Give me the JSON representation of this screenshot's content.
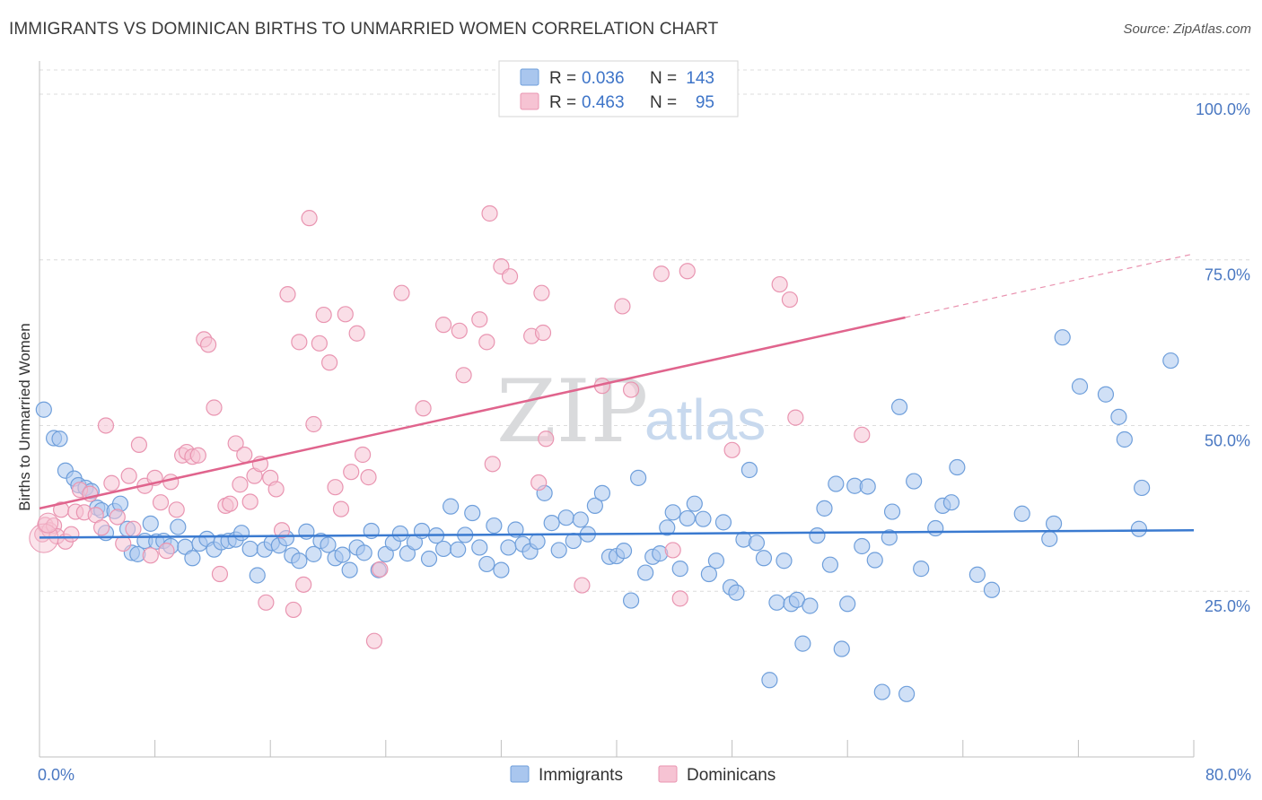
{
  "title": "IMMIGRANTS VS DOMINICAN BIRTHS TO UNMARRIED WOMEN CORRELATION CHART",
  "source": "Source: ZipAtlas.com",
  "watermark": {
    "zip": "ZIP",
    "atlas": "atlas"
  },
  "colors": {
    "immigrants_fill": "#a9c6ee",
    "immigrants_stroke": "#6f9fdb",
    "immigrants_line": "#3a7ad0",
    "dominicans_fill": "#f6c3d3",
    "dominicans_stroke": "#e995b1",
    "dominicans_line": "#e0648d",
    "tick_text": "#4a78c2",
    "grid": "#dcdcdc"
  },
  "legend_top": {
    "rows": [
      {
        "r_label": "R =",
        "r_value": "0.036",
        "n_label": "N =",
        "n_value": "143",
        "series": "immigrants"
      },
      {
        "r_label": "R =",
        "r_value": "0.463",
        "n_label": "N =",
        "n_value": "95",
        "series": "dominicans"
      }
    ]
  },
  "legend_bottom": [
    {
      "label": "Immigrants",
      "series": "immigrants"
    },
    {
      "label": "Dominicans",
      "series": "dominicans"
    }
  ],
  "chart_data": {
    "type": "scatter",
    "title": "IMMIGRANTS VS DOMINICAN BIRTHS TO UNMARRIED WOMEN CORRELATION CHART",
    "xlabel": "",
    "ylabel": "Births to Unmarried Women",
    "xlim": [
      0,
      80
    ],
    "ylim": [
      0,
      105
    ],
    "x_tick_labels": [
      {
        "value": 0,
        "label": "0.0%"
      },
      {
        "value": 80,
        "label": "80.0%"
      }
    ],
    "y_tick_labels": [
      {
        "value": 25,
        "label": "25.0%"
      },
      {
        "value": 50,
        "label": "50.0%"
      },
      {
        "value": 75,
        "label": "75.0%"
      },
      {
        "value": 100,
        "label": "100.0%"
      }
    ],
    "x_minor_ticks": [
      0,
      8,
      16,
      24,
      32,
      40,
      48,
      56,
      64,
      72,
      80
    ],
    "grid": "horizontal dashed",
    "legend": "top-center",
    "series": [
      {
        "name": "Immigrants",
        "r": 0.036,
        "n": 143,
        "trend": {
          "x0": 0,
          "y0": 33.1,
          "x1": 80,
          "y1": 34.2
        },
        "points": [
          [
            0.3,
            52.4
          ],
          [
            1.0,
            48.1
          ],
          [
            1.4,
            48.0
          ],
          [
            1.8,
            43.2
          ],
          [
            2.4,
            42.0
          ],
          [
            2.7,
            41.0
          ],
          [
            3.2,
            40.6
          ],
          [
            3.6,
            40.1
          ],
          [
            4.0,
            37.6
          ],
          [
            4.3,
            37.2
          ],
          [
            4.6,
            33.8
          ],
          [
            5.2,
            37.1
          ],
          [
            5.6,
            38.2
          ],
          [
            6.1,
            34.4
          ],
          [
            6.4,
            30.8
          ],
          [
            6.8,
            30.6
          ],
          [
            7.3,
            32.6
          ],
          [
            7.7,
            35.2
          ],
          [
            8.1,
            32.5
          ],
          [
            8.6,
            32.6
          ],
          [
            9.1,
            31.8
          ],
          [
            9.6,
            34.7
          ],
          [
            10.1,
            31.7
          ],
          [
            10.6,
            30.0
          ],
          [
            11.1,
            32.2
          ],
          [
            11.6,
            32.9
          ],
          [
            12.1,
            31.3
          ],
          [
            12.6,
            32.4
          ],
          [
            13.1,
            32.6
          ],
          [
            13.6,
            32.8
          ],
          [
            14.0,
            33.8
          ],
          [
            14.6,
            31.4
          ],
          [
            15.1,
            27.4
          ],
          [
            15.6,
            31.3
          ],
          [
            16.1,
            32.3
          ],
          [
            16.6,
            31.9
          ],
          [
            17.1,
            33.0
          ],
          [
            17.5,
            30.4
          ],
          [
            18.0,
            29.6
          ],
          [
            18.5,
            34.0
          ],
          [
            19.0,
            30.6
          ],
          [
            19.5,
            32.6
          ],
          [
            20.0,
            32.0
          ],
          [
            20.5,
            30.0
          ],
          [
            21.0,
            30.5
          ],
          [
            21.5,
            28.2
          ],
          [
            22.0,
            31.6
          ],
          [
            22.5,
            30.8
          ],
          [
            23.0,
            34.1
          ],
          [
            23.5,
            28.2
          ],
          [
            24.0,
            30.6
          ],
          [
            24.5,
            32.3
          ],
          [
            25.0,
            33.7
          ],
          [
            25.5,
            30.7
          ],
          [
            26.0,
            32.4
          ],
          [
            26.5,
            34.1
          ],
          [
            27.0,
            29.9
          ],
          [
            27.5,
            33.4
          ],
          [
            28.0,
            31.4
          ],
          [
            28.5,
            37.8
          ],
          [
            29.0,
            31.3
          ],
          [
            29.5,
            33.5
          ],
          [
            30.0,
            36.8
          ],
          [
            30.5,
            31.6
          ],
          [
            31.0,
            29.1
          ],
          [
            31.5,
            34.9
          ],
          [
            32.0,
            28.2
          ],
          [
            32.5,
            31.6
          ],
          [
            33.0,
            34.3
          ],
          [
            33.5,
            32.1
          ],
          [
            34.0,
            31.0
          ],
          [
            34.5,
            32.5
          ],
          [
            35.0,
            39.8
          ],
          [
            35.5,
            35.3
          ],
          [
            36.0,
            31.2
          ],
          [
            36.5,
            36.1
          ],
          [
            37.0,
            32.6
          ],
          [
            37.5,
            35.8
          ],
          [
            38.0,
            33.6
          ],
          [
            38.5,
            37.9
          ],
          [
            39.0,
            39.8
          ],
          [
            39.5,
            30.2
          ],
          [
            40.0,
            30.3
          ],
          [
            40.5,
            31.1
          ],
          [
            41.0,
            23.6
          ],
          [
            41.5,
            42.1
          ],
          [
            42.0,
            27.8
          ],
          [
            42.5,
            30.2
          ],
          [
            43.0,
            30.7
          ],
          [
            43.5,
            34.6
          ],
          [
            43.9,
            36.9
          ],
          [
            44.4,
            28.4
          ],
          [
            44.9,
            36.0
          ],
          [
            45.4,
            38.2
          ],
          [
            46.0,
            35.9
          ],
          [
            46.4,
            27.6
          ],
          [
            46.9,
            29.6
          ],
          [
            47.4,
            35.4
          ],
          [
            47.9,
            25.6
          ],
          [
            48.3,
            24.8
          ],
          [
            48.8,
            32.8
          ],
          [
            49.2,
            43.3
          ],
          [
            49.7,
            32.3
          ],
          [
            50.2,
            30.0
          ],
          [
            50.6,
            11.6
          ],
          [
            51.1,
            23.3
          ],
          [
            51.6,
            29.6
          ],
          [
            52.1,
            23.1
          ],
          [
            52.5,
            23.7
          ],
          [
            52.9,
            17.1
          ],
          [
            53.4,
            22.8
          ],
          [
            53.9,
            33.4
          ],
          [
            54.4,
            37.5
          ],
          [
            54.8,
            29.0
          ],
          [
            55.2,
            41.2
          ],
          [
            55.6,
            16.3
          ],
          [
            56.0,
            23.1
          ],
          [
            56.5,
            40.9
          ],
          [
            57.0,
            31.8
          ],
          [
            57.4,
            40.8
          ],
          [
            57.9,
            29.7
          ],
          [
            58.4,
            9.8
          ],
          [
            58.9,
            33.1
          ],
          [
            59.1,
            37.0
          ],
          [
            59.6,
            52.8
          ],
          [
            60.1,
            9.5
          ],
          [
            60.6,
            41.6
          ],
          [
            61.1,
            28.4
          ],
          [
            62.1,
            34.5
          ],
          [
            62.6,
            37.9
          ],
          [
            63.2,
            38.4
          ],
          [
            63.6,
            43.7
          ],
          [
            65.0,
            27.5
          ],
          [
            66.0,
            25.2
          ],
          [
            68.1,
            36.7
          ],
          [
            70.0,
            32.9
          ],
          [
            70.3,
            35.2
          ],
          [
            70.9,
            63.3
          ],
          [
            72.1,
            55.9
          ],
          [
            73.9,
            54.7
          ],
          [
            74.8,
            51.3
          ],
          [
            75.2,
            47.9
          ],
          [
            76.2,
            34.4
          ],
          [
            76.4,
            40.6
          ],
          [
            78.4,
            59.8
          ]
        ]
      },
      {
        "name": "Dominicans",
        "r": 0.463,
        "n": 95,
        "trend": {
          "x0": 0,
          "y0": 37.5,
          "x1": 60,
          "y1": 66.3
        },
        "trend_extension": {
          "x0": 60,
          "y0": 66.3,
          "x1": 80,
          "y1": 75.9
        },
        "points": [
          [
            0.2,
            33.6
          ],
          [
            0.4,
            35.0
          ],
          [
            0.7,
            34.2
          ],
          [
            1.0,
            34.9
          ],
          [
            1.2,
            33.3
          ],
          [
            1.5,
            37.3
          ],
          [
            1.8,
            32.5
          ],
          [
            2.2,
            33.6
          ],
          [
            2.5,
            37.0
          ],
          [
            2.8,
            40.3
          ],
          [
            3.1,
            36.9
          ],
          [
            3.5,
            39.7
          ],
          [
            3.9,
            36.5
          ],
          [
            4.3,
            34.6
          ],
          [
            4.6,
            50.0
          ],
          [
            5.0,
            41.3
          ],
          [
            5.4,
            36.2
          ],
          [
            5.8,
            32.2
          ],
          [
            6.2,
            42.4
          ],
          [
            6.5,
            34.4
          ],
          [
            6.9,
            47.1
          ],
          [
            7.3,
            40.9
          ],
          [
            7.7,
            30.4
          ],
          [
            8.0,
            42.1
          ],
          [
            8.4,
            38.4
          ],
          [
            8.8,
            31.1
          ],
          [
            9.1,
            41.5
          ],
          [
            9.5,
            37.3
          ],
          [
            9.9,
            45.5
          ],
          [
            10.2,
            46.0
          ],
          [
            10.6,
            45.3
          ],
          [
            11.0,
            45.5
          ],
          [
            11.4,
            63.0
          ],
          [
            11.7,
            62.2
          ],
          [
            12.1,
            52.7
          ],
          [
            12.5,
            27.6
          ],
          [
            12.9,
            37.9
          ],
          [
            13.2,
            38.2
          ],
          [
            13.6,
            47.3
          ],
          [
            13.9,
            41.1
          ],
          [
            14.2,
            45.6
          ],
          [
            14.6,
            38.5
          ],
          [
            14.9,
            42.4
          ],
          [
            15.3,
            44.2
          ],
          [
            15.7,
            23.3
          ],
          [
            16.0,
            42.1
          ],
          [
            16.4,
            40.4
          ],
          [
            16.8,
            34.2
          ],
          [
            17.2,
            69.8
          ],
          [
            17.6,
            22.2
          ],
          [
            18.0,
            62.6
          ],
          [
            18.3,
            26.0
          ],
          [
            18.7,
            81.3
          ],
          [
            19.0,
            50.2
          ],
          [
            19.4,
            62.4
          ],
          [
            19.7,
            66.7
          ],
          [
            20.1,
            59.5
          ],
          [
            20.5,
            40.7
          ],
          [
            20.9,
            37.4
          ],
          [
            21.2,
            66.8
          ],
          [
            21.6,
            43.0
          ],
          [
            22.0,
            63.9
          ],
          [
            22.4,
            45.6
          ],
          [
            22.8,
            42.2
          ],
          [
            23.2,
            17.5
          ],
          [
            23.6,
            28.3
          ],
          [
            25.1,
            70.0
          ],
          [
            26.6,
            52.6
          ],
          [
            28.0,
            65.2
          ],
          [
            29.1,
            64.3
          ],
          [
            29.4,
            57.6
          ],
          [
            30.5,
            66.0
          ],
          [
            31.0,
            62.6
          ],
          [
            31.2,
            82.0
          ],
          [
            31.4,
            44.2
          ],
          [
            32.0,
            74.0
          ],
          [
            32.6,
            72.5
          ],
          [
            34.1,
            63.5
          ],
          [
            34.6,
            41.4
          ],
          [
            34.8,
            70.0
          ],
          [
            34.9,
            64.0
          ],
          [
            35.1,
            48.0
          ],
          [
            37.6,
            25.9
          ],
          [
            39.0,
            56.0
          ],
          [
            40.4,
            68.0
          ],
          [
            41.0,
            55.4
          ],
          [
            43.1,
            72.9
          ],
          [
            43.9,
            31.2
          ],
          [
            44.4,
            23.9
          ],
          [
            44.9,
            73.3
          ],
          [
            48.0,
            46.3
          ],
          [
            51.3,
            71.3
          ],
          [
            52.0,
            69.0
          ],
          [
            52.4,
            51.2
          ],
          [
            57.0,
            48.6
          ]
        ]
      }
    ]
  }
}
